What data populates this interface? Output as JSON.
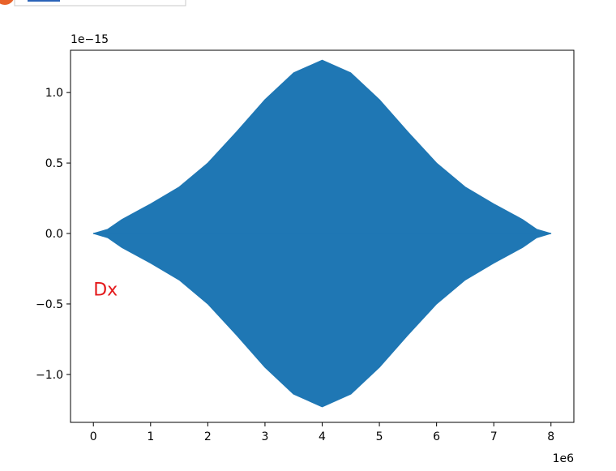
{
  "top_bar": {
    "accent_color": "#e8622a",
    "field_border_color": "#c8c8c8",
    "field_text_color": "#2a63b8"
  },
  "chart_data": {
    "type": "area",
    "title": "",
    "xlabel": "",
    "ylabel": "",
    "x_offset_label": "1e6",
    "y_offset_label": "1e−15",
    "xlim": [
      -0.4,
      8.4
    ],
    "ylim": [
      -1.34,
      1.3
    ],
    "xticks": [
      0,
      1,
      2,
      3,
      4,
      5,
      6,
      7,
      8
    ],
    "xtick_labels": [
      "0",
      "1",
      "2",
      "3",
      "4",
      "5",
      "6",
      "7",
      "8"
    ],
    "yticks": [
      -1.0,
      -0.5,
      0.0,
      0.5,
      1.0
    ],
    "ytick_labels": [
      "−1.0",
      "−0.5",
      "0.0",
      "0.5",
      "1.0"
    ],
    "grid": false,
    "legend": "none",
    "series": [
      {
        "color": "#1f77b4",
        "x": [
          0,
          0.25,
          0.5,
          1,
          1.5,
          2,
          2.5,
          3,
          3.5,
          4,
          4.5,
          5,
          5.5,
          6,
          6.5,
          7,
          7.5,
          7.75,
          8
        ],
        "upper": [
          0,
          0.03,
          0.1,
          0.21,
          0.33,
          0.5,
          0.72,
          0.95,
          1.14,
          1.23,
          1.14,
          0.95,
          0.72,
          0.5,
          0.33,
          0.21,
          0.1,
          0.03,
          0
        ],
        "lower": [
          0,
          -0.03,
          -0.1,
          -0.21,
          -0.33,
          -0.5,
          -0.72,
          -0.95,
          -1.14,
          -1.23,
          -1.14,
          -0.95,
          -0.72,
          -0.5,
          -0.33,
          -0.21,
          -0.1,
          -0.03,
          0
        ]
      }
    ],
    "annotations": [
      {
        "text": "Dx",
        "x": 0.0,
        "y": -0.44,
        "color": "#e41a1c"
      }
    ]
  }
}
